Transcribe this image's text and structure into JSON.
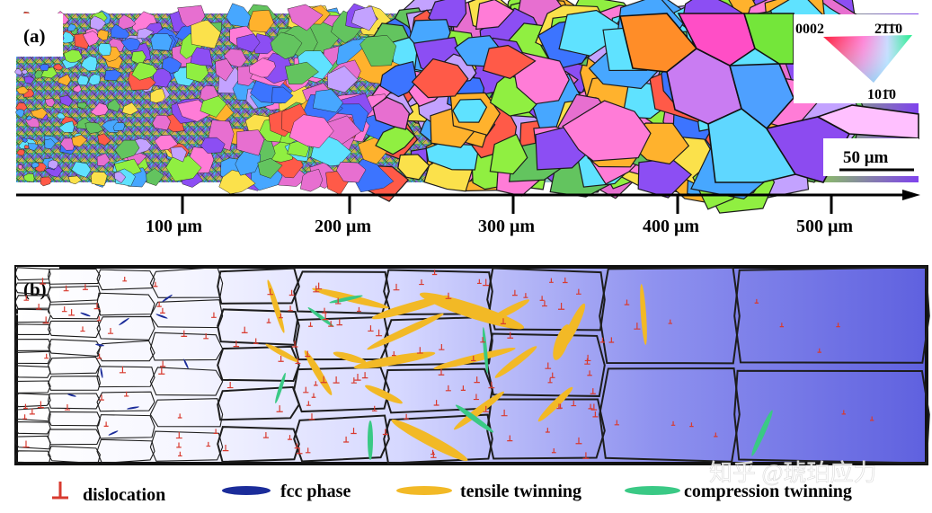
{
  "panel_a": {
    "label": "(a)",
    "legend": {
      "pole_0002": "0002",
      "pole_2110": "2̄1̄1̄0",
      "pole_1010": "101̄0"
    },
    "scale_bar": "50 μm",
    "axis_ticks": [
      "100 μm",
      "200 μm",
      "300 μm",
      "400 μm",
      "500 μm"
    ]
  },
  "panel_b": {
    "label": "(b)"
  },
  "legend": {
    "dislocation": "dislocation",
    "fcc_phase": "fcc phase",
    "tensile_twinning": "tensile twinning",
    "compression_twinning": "compression twinning"
  },
  "watermark": "知乎 @琥珀应力",
  "colors": {
    "dislocation": "#d83a2f",
    "fcc": "#1b2c9a",
    "tensile": "#f2b926",
    "compression": "#3ac985",
    "panel_b_dark": "#5f61df",
    "panel_b_light": "#ffffff"
  }
}
